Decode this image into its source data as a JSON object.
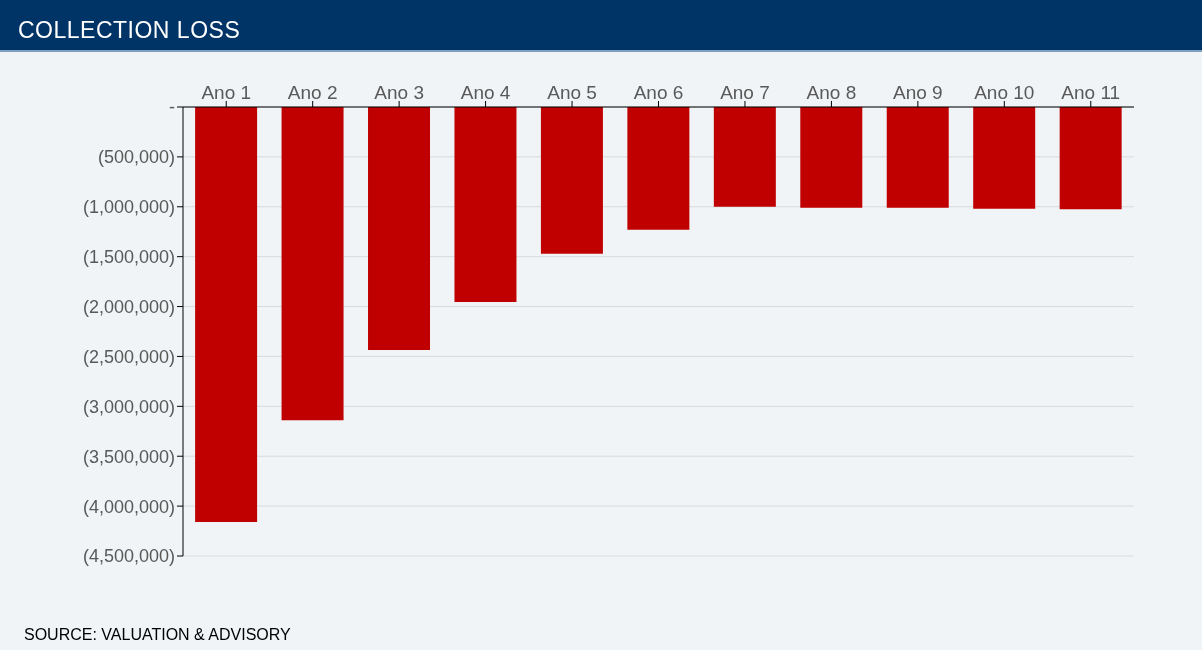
{
  "chart_data": {
    "type": "bar",
    "title": "COLLECTION LOSS",
    "categories": [
      "Ano 1",
      "Ano 2",
      "Ano 3",
      "Ano 4",
      "Ano 5",
      "Ano 6",
      "Ano 7",
      "Ano 8",
      "Ano 9",
      "Ano 10",
      "Ano 11"
    ],
    "values": [
      -4160000,
      -3140000,
      -2435000,
      -1955000,
      -1470000,
      -1230000,
      -1000000,
      -1010000,
      -1010000,
      -1020000,
      -1025000
    ],
    "color": "#c00000",
    "ylim": [
      -4500000,
      0
    ],
    "yticks": [
      {
        "value": 0,
        "label": "-"
      },
      {
        "value": -500000,
        "label": "(500,000)"
      },
      {
        "value": -1000000,
        "label": "(1,000,000)"
      },
      {
        "value": -1500000,
        "label": "(1,500,000)"
      },
      {
        "value": -2000000,
        "label": "(2,000,000)"
      },
      {
        "value": -2500000,
        "label": "(2,500,000)"
      },
      {
        "value": -3000000,
        "label": "(3,000,000)"
      },
      {
        "value": -3500000,
        "label": "(3,500,000)"
      },
      {
        "value": -4000000,
        "label": "(4,000,000)"
      },
      {
        "value": -4500000,
        "label": "(4,500,000)"
      }
    ],
    "grid": "y",
    "legend": false,
    "annotations": [
      "SOURCE: VALUATION & ADVISORY"
    ]
  }
}
